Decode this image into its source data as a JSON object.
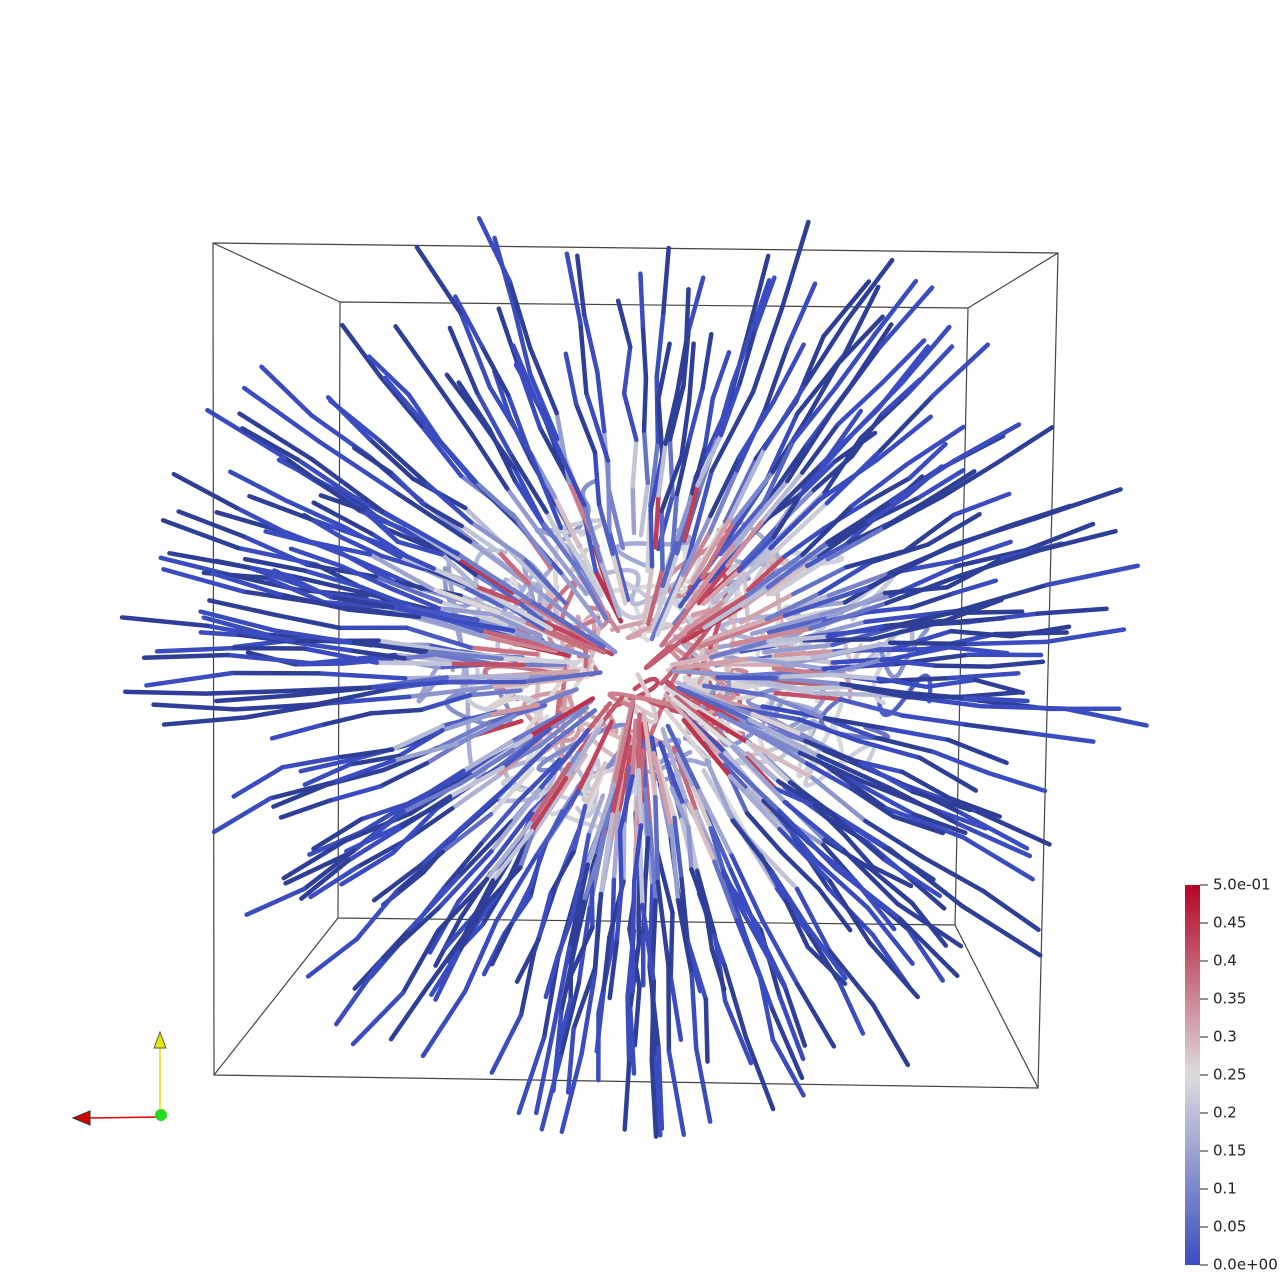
{
  "colorbar": {
    "range": [
      0,
      0.5
    ],
    "ticks": [
      {
        "value": 0,
        "label": "0.0e+00"
      },
      0.05,
      0.1,
      0.15,
      0.2,
      0.25,
      0.3,
      0.35,
      0.4,
      0.45,
      {
        "value": 0.5,
        "label": "5.0e-01"
      }
    ]
  }
}
